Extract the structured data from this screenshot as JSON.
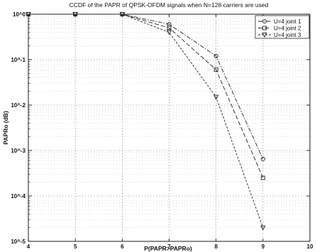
{
  "chart_data": {
    "type": "line",
    "title": "CCDF of the PAPR of QPSK-OFDM signals when N=128 carriers are used",
    "xlabel": "P(PAPR>PAPRo)",
    "ylabel": "PAPRo (dB)",
    "x_ticks": [
      "4",
      "5",
      "6",
      "7",
      "8",
      "9",
      "10"
    ],
    "y_ticks": [
      "10^0",
      "10^-1",
      "10^-2",
      "10^-3",
      "10^-4",
      "10^-5"
    ],
    "xlim": [
      4,
      10
    ],
    "ylim": [
      1e-05,
      1
    ],
    "yscale": "log",
    "grid": true,
    "legend_position": "top-right",
    "series": [
      {
        "name": "U=4 joint 1",
        "marker": "circle",
        "dash": "6,2,1.5,2",
        "x": [
          4,
          5,
          6,
          7,
          8,
          9
        ],
        "y": [
          1,
          1,
          1,
          0.6,
          0.12,
          0.00065
        ]
      },
      {
        "name": "U=4 joint 2",
        "marker": "square",
        "dash": "6,3",
        "x": [
          4,
          5,
          6,
          7,
          8,
          9
        ],
        "y": [
          1,
          1,
          1,
          0.5,
          0.06,
          0.00025
        ]
      },
      {
        "name": "U=4 joint 3",
        "marker": "triangle",
        "dash": "3,2",
        "x": [
          4,
          5,
          6,
          7,
          8,
          9
        ],
        "y": [
          1,
          1,
          1,
          0.4,
          0.015,
          2e-05
        ]
      }
    ]
  }
}
